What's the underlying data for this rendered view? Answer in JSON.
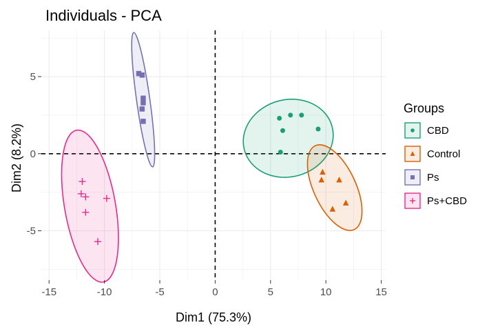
{
  "chart_data": {
    "type": "scatter",
    "title": "Individuals - PCA",
    "xlabel": "Dim1 (75.3%)",
    "ylabel": "Dim2 (8.2%)",
    "xlim": [
      -15.7,
      15.4
    ],
    "ylim": [
      -8.2,
      8.0
    ],
    "xticks": [
      -15,
      -10,
      -5,
      0,
      5,
      10,
      15
    ],
    "yticks": [
      -5,
      0,
      5
    ],
    "grid": true,
    "reference_lines": {
      "x": 0,
      "y": 0,
      "style": "dashed"
    },
    "legend": {
      "title": "Groups",
      "position": "right"
    },
    "series": [
      {
        "name": "CBD",
        "color": "#1b9e77",
        "marker": "circle",
        "points": [
          [
            5.8,
            2.3
          ],
          [
            6.8,
            2.5
          ],
          [
            7.8,
            2.5
          ],
          [
            9.3,
            1.6
          ],
          [
            6.1,
            1.5
          ],
          [
            5.9,
            0.1
          ]
        ],
        "ellipse": {
          "center": [
            6.6,
            1.0
          ],
          "radius_x": 4.1,
          "radius_y": 2.5,
          "angle_deg": 15
        }
      },
      {
        "name": "Control",
        "color": "#d95f02",
        "marker": "triangle",
        "points": [
          [
            9.6,
            -1.7
          ],
          [
            11.2,
            -1.7
          ],
          [
            9.7,
            -1.2
          ],
          [
            11.8,
            -3.2
          ],
          [
            10.6,
            -3.6
          ]
        ],
        "ellipse": {
          "center": [
            10.8,
            -2.2
          ],
          "radius_x": 1.9,
          "radius_y": 3.0,
          "angle_deg": 25
        }
      },
      {
        "name": "Ps",
        "color": "#7570b3",
        "marker": "square",
        "points": [
          [
            -6.9,
            5.2
          ],
          [
            -6.6,
            5.1
          ],
          [
            -6.5,
            3.6
          ],
          [
            -6.5,
            3.3
          ],
          [
            -6.6,
            2.9
          ],
          [
            -6.5,
            2.1
          ]
        ],
        "ellipse": {
          "center": [
            -6.5,
            3.5
          ],
          "radius_x": 0.6,
          "radius_y": 4.4,
          "angle_deg": 8
        }
      },
      {
        "name": "Ps+CBD",
        "color": "#e7298a",
        "marker": "cross",
        "points": [
          [
            -12.0,
            -1.8
          ],
          [
            -12.1,
            -2.6
          ],
          [
            -11.7,
            -2.8
          ],
          [
            -9.8,
            -2.9
          ],
          [
            -11.7,
            -3.8
          ],
          [
            -10.6,
            -5.7
          ]
        ],
        "ellipse": {
          "center": [
            -11.3,
            -3.4
          ],
          "radius_x": 2.3,
          "radius_y": 5.0,
          "angle_deg": 10
        }
      }
    ]
  }
}
